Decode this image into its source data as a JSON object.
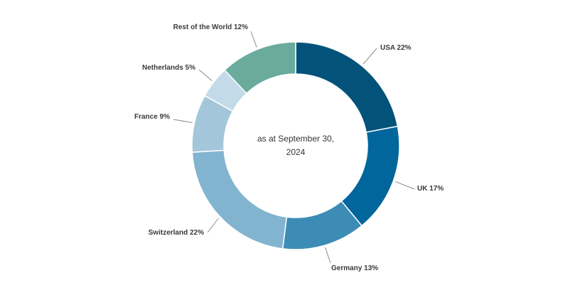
{
  "chart_data": {
    "type": "pie",
    "center_label": [
      "as at September 30,",
      "2024"
    ],
    "slices": [
      {
        "label": "USA 22%",
        "name": "USA",
        "value": 22,
        "color": "#03527a"
      },
      {
        "label": "UK 17%",
        "name": "UK",
        "value": 17,
        "color": "#00669b"
      },
      {
        "label": "Germany 13%",
        "name": "Germany",
        "value": 13,
        "color": "#3d8cb6"
      },
      {
        "label": "Switzerland 22%",
        "name": "Switzerland",
        "value": 22,
        "color": "#82b4d0"
      },
      {
        "label": "France 9%",
        "name": "France",
        "value": 9,
        "color": "#a4c6da"
      },
      {
        "label": "Netherlands 5%",
        "name": "Netherlands",
        "value": 5,
        "color": "#c3dae8"
      },
      {
        "label": "Rest of the World 12%",
        "name": "Rest of the World",
        "value": 12,
        "color": "#6aab9e"
      }
    ]
  }
}
